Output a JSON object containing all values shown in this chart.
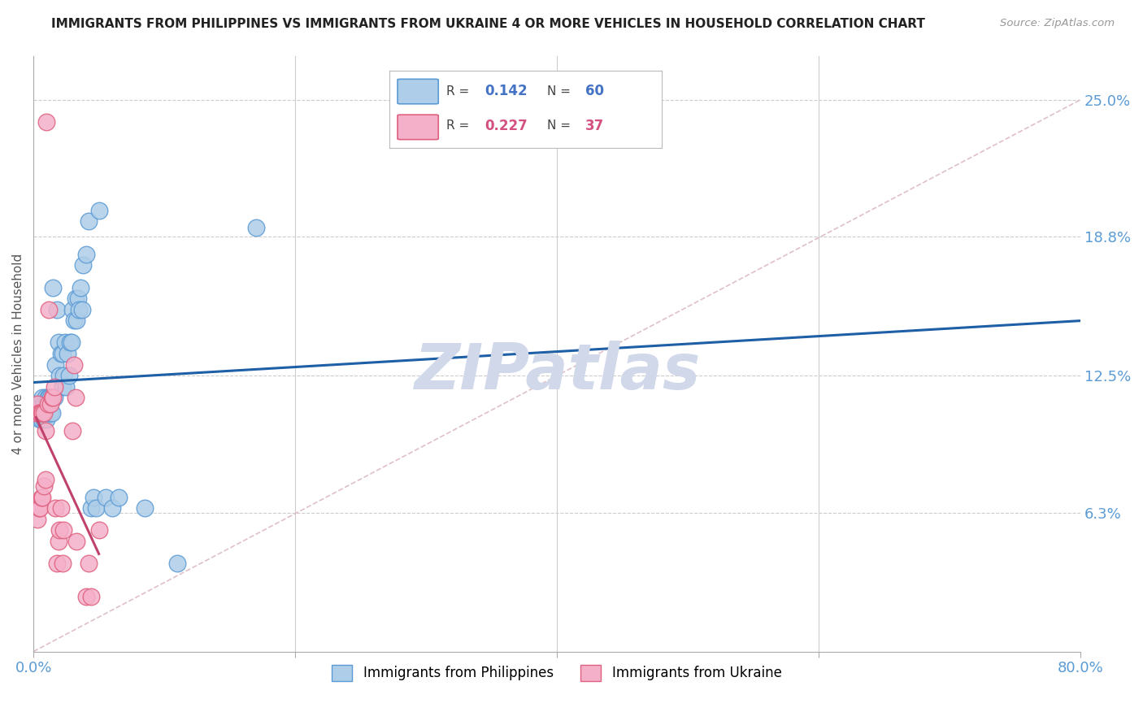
{
  "title": "IMMIGRANTS FROM PHILIPPINES VS IMMIGRANTS FROM UKRAINE 4 OR MORE VEHICLES IN HOUSEHOLD CORRELATION CHART",
  "source": "Source: ZipAtlas.com",
  "ylabel": "4 or more Vehicles in Household",
  "xlim": [
    0.0,
    0.8
  ],
  "ylim": [
    0.0,
    0.27
  ],
  "ytick_positions": [
    0.063,
    0.125,
    0.188,
    0.25
  ],
  "ytick_labels": [
    "6.3%",
    "12.5%",
    "18.8%",
    "25.0%"
  ],
  "background_color": "#ffffff",
  "philippines_color": "#aecde8",
  "philippines_edge_color": "#5b9bd5",
  "ukraine_color": "#f4b0c8",
  "ukraine_edge_color": "#e06080",
  "R_philippines": 0.142,
  "N_philippines": 60,
  "R_ukraine": 0.227,
  "N_ukraine": 37,
  "legend_philippines_label": "Immigrants from Philippines",
  "legend_ukraine_label": "Immigrants from Ukraine",
  "philippines_x": [
    0.002,
    0.003,
    0.004,
    0.004,
    0.005,
    0.005,
    0.006,
    0.006,
    0.007,
    0.007,
    0.008,
    0.008,
    0.009,
    0.009,
    0.01,
    0.01,
    0.011,
    0.011,
    0.012,
    0.012,
    0.013,
    0.013,
    0.014,
    0.015,
    0.016,
    0.017,
    0.018,
    0.019,
    0.02,
    0.021,
    0.022,
    0.022,
    0.023,
    0.024,
    0.025,
    0.026,
    0.027,
    0.028,
    0.029,
    0.03,
    0.031,
    0.032,
    0.033,
    0.034,
    0.035,
    0.036,
    0.037,
    0.038,
    0.04,
    0.042,
    0.044,
    0.046,
    0.048,
    0.05,
    0.055,
    0.06,
    0.065,
    0.085,
    0.11,
    0.17
  ],
  "philippines_y": [
    0.108,
    0.11,
    0.108,
    0.112,
    0.105,
    0.11,
    0.105,
    0.112,
    0.108,
    0.115,
    0.105,
    0.112,
    0.108,
    0.115,
    0.105,
    0.112,
    0.108,
    0.115,
    0.108,
    0.115,
    0.108,
    0.115,
    0.108,
    0.165,
    0.115,
    0.13,
    0.155,
    0.14,
    0.125,
    0.135,
    0.12,
    0.135,
    0.125,
    0.14,
    0.12,
    0.135,
    0.125,
    0.14,
    0.14,
    0.155,
    0.15,
    0.16,
    0.15,
    0.16,
    0.155,
    0.165,
    0.155,
    0.175,
    0.18,
    0.195,
    0.065,
    0.07,
    0.065,
    0.2,
    0.07,
    0.065,
    0.07,
    0.065,
    0.04,
    0.192
  ],
  "ukraine_x": [
    0.002,
    0.003,
    0.003,
    0.004,
    0.004,
    0.005,
    0.005,
    0.006,
    0.006,
    0.007,
    0.007,
    0.008,
    0.008,
    0.009,
    0.009,
    0.01,
    0.011,
    0.012,
    0.013,
    0.014,
    0.015,
    0.016,
    0.017,
    0.018,
    0.019,
    0.02,
    0.021,
    0.022,
    0.023,
    0.03,
    0.031,
    0.032,
    0.033,
    0.04,
    0.042,
    0.044,
    0.05
  ],
  "ukraine_y": [
    0.108,
    0.112,
    0.06,
    0.108,
    0.065,
    0.108,
    0.065,
    0.108,
    0.07,
    0.108,
    0.07,
    0.108,
    0.075,
    0.1,
    0.078,
    0.24,
    0.112,
    0.155,
    0.112,
    0.115,
    0.115,
    0.12,
    0.065,
    0.04,
    0.05,
    0.055,
    0.065,
    0.04,
    0.055,
    0.1,
    0.13,
    0.115,
    0.05,
    0.025,
    0.04,
    0.025,
    0.055
  ],
  "trend_line_philippines_color": "#1f5fa6",
  "trend_line_ukraine_color": "#c0426a",
  "diagonal_line_color": "#e0c0c8",
  "watermark": "ZIPatlas",
  "watermark_color": "#d0d8ea",
  "watermark_fontsize": 56
}
